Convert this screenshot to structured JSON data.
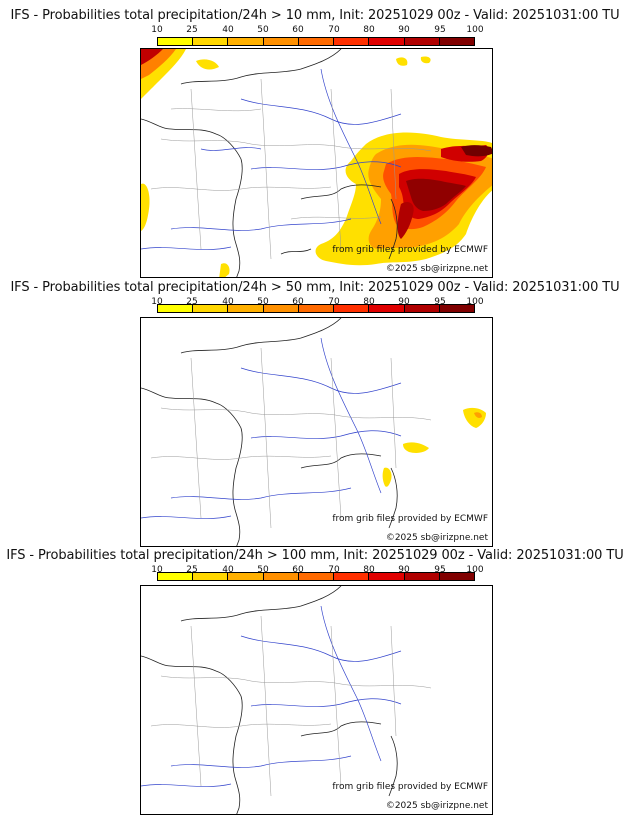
{
  "scale": {
    "ticks": [
      "10",
      "25",
      "40",
      "50",
      "60",
      "70",
      "80",
      "90",
      "95",
      "100"
    ],
    "colors": [
      "#ffff00",
      "#ffd700",
      "#ffb000",
      "#ff9000",
      "#ff6a00",
      "#ff3000",
      "#e00000",
      "#b00000",
      "#800000",
      "#500000"
    ]
  },
  "credits": {
    "grib": "from grib files provided by ECMWF",
    "copyright": "©2025 sb@irizpne.net"
  },
  "panels": [
    {
      "title": "IFS - Probabilities total precipitation/24h > 10 mm, Init: 20251029 00z - Valid: 20251031:00 TU"
    },
    {
      "title": "IFS - Probabilities total precipitation/24h > 50 mm, Init: 20251029 00z - Valid: 20251031:00 TU"
    },
    {
      "title": "IFS - Probabilities total precipitation/24h > 100 mm, Init: 20251029 00z - Valid: 20251031:00 TU"
    }
  ]
}
